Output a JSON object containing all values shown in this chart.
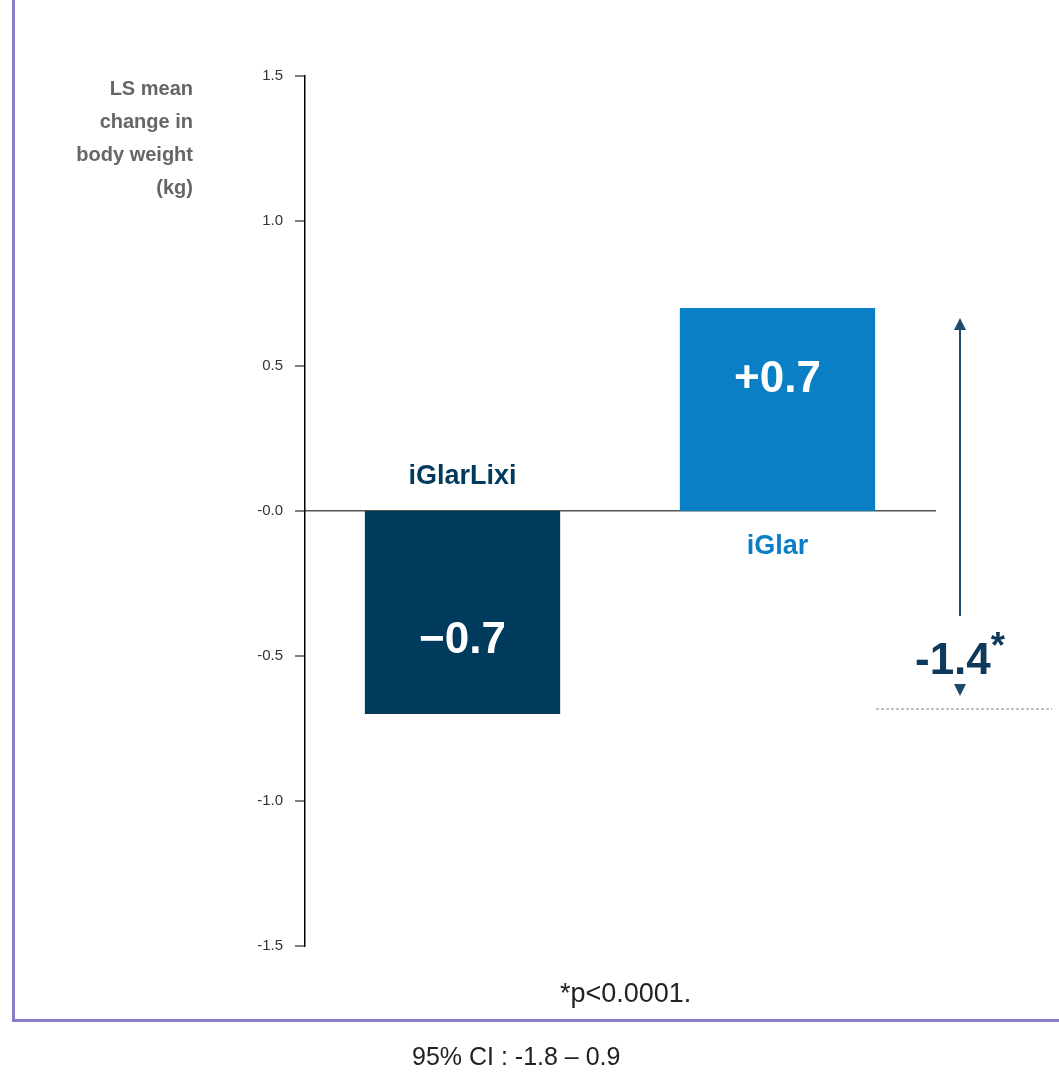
{
  "chart_data": {
    "type": "bar",
    "ylabel": "LS mean change in body weight (kg)",
    "categories": [
      "iGlarLixi",
      "iGlar"
    ],
    "values": [
      -0.7,
      0.7
    ],
    "colors": [
      "#003a5c",
      "#0a7fc6"
    ],
    "value_labels": [
      "−0.7",
      "+0.7"
    ],
    "ylim": [
      -1.5,
      1.5
    ],
    "yticks": [
      {
        "value": -1.5,
        "label": "-1.5"
      },
      {
        "value": -1,
        "label": "-1.0"
      },
      {
        "value": -0.5,
        "label": "-0.5"
      },
      {
        "value": 0,
        "label": "-0.0"
      },
      {
        "value": 0.5,
        "label": "0.5"
      },
      {
        "value": 1,
        "label": "1.0"
      },
      {
        "value": 1.5,
        "label": "1.5"
      }
    ],
    "legend": false,
    "annotations": [
      "-1.4$^{*}$",
      "*p<0.0001.",
      "95% CI : -1.8  – 0.9"
    ]
  }
}
